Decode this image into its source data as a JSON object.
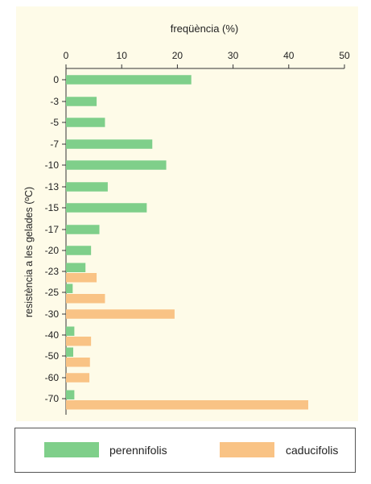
{
  "chart_data": {
    "type": "bar",
    "orientation": "horizontal",
    "title": "freqüència (%)",
    "xlabel": "freqüència (%)",
    "ylabel": "resistència a les gelades (ºC)",
    "xlim": [
      0,
      50
    ],
    "xticks": [
      "0",
      "10",
      "20",
      "30",
      "40",
      "50"
    ],
    "categories": [
      "0",
      "-3",
      "-5",
      "-7",
      "-10",
      "-13",
      "-15",
      "-17",
      "-20",
      "-23",
      "-25",
      "-30",
      "-40",
      "-50",
      "-60",
      "-70"
    ],
    "series": [
      {
        "name": "perennifolis",
        "color": "#7fcf8a",
        "values": [
          22.5,
          5.5,
          7,
          15.5,
          18,
          7.5,
          14.5,
          6,
          4.5,
          3.5,
          1.2,
          0,
          1.5,
          1.3,
          0,
          1.5
        ]
      },
      {
        "name": "caducifolis",
        "color": "#f9c385",
        "values": [
          0,
          0,
          0,
          0,
          0,
          0,
          0,
          0,
          0,
          5.5,
          7,
          19.5,
          4.5,
          4.3,
          4.2,
          43.5
        ]
      }
    ],
    "background": "#fefbe8",
    "grid": false,
    "legend_position": "bottom"
  },
  "legend": {
    "perennial_label": "perennifolis",
    "deciduous_label": "caducifolis"
  }
}
